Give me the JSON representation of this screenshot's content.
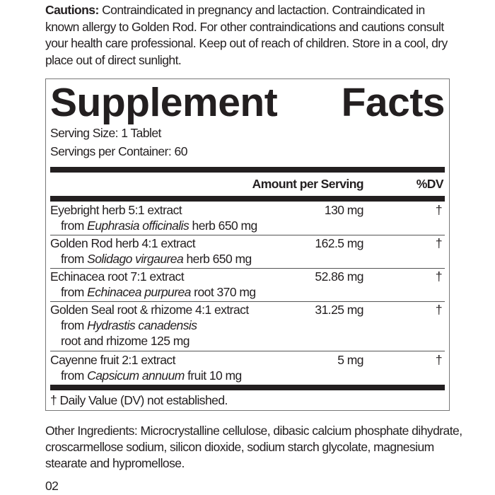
{
  "cautions": {
    "label": "Cautions:",
    "text": "Contraindicated in pregnancy and lactaction. Contraindicated in known allergy to Golden Rod. For other contraindications and cautions consult your health care professional. Keep out of reach of children. Store in a cool, dry place out of direct sunlight."
  },
  "facts": {
    "title_word1": "Supplement",
    "title_word2": "Facts",
    "serving_size": "Serving Size: 1 Tablet",
    "servings_per_container": "Servings per Container: 60",
    "header_amount": "Amount per Serving",
    "header_dv": "%DV",
    "rows": [
      {
        "name": "Eyebright herb 5:1 extract",
        "from": "from ",
        "latin": "Euphrasia officinalis",
        "rest": " herb 650 mg",
        "extra": "",
        "amount": "130 mg",
        "dv": "†"
      },
      {
        "name": "Golden Rod herb 4:1 extract",
        "from": "from ",
        "latin": "Solidago virgaurea",
        "rest": " herb 650 mg",
        "extra": "",
        "amount": "162.5 mg",
        "dv": "†"
      },
      {
        "name": "Echinacea root 7:1 extract",
        "from": "from ",
        "latin": "Echinacea purpurea",
        "rest": " root 370 mg",
        "extra": "",
        "amount": "52.86 mg",
        "dv": "†"
      },
      {
        "name": "Golden Seal root & rhizome 4:1 extract",
        "from": "from ",
        "latin": "Hydrastis canadensis",
        "rest": "",
        "extra": "root and rhizome 125 mg",
        "amount": "31.25 mg",
        "dv": "†"
      },
      {
        "name": "Cayenne fruit 2:1 extract",
        "from": "from ",
        "latin": "Capsicum annuum",
        "rest": " fruit 10 mg",
        "extra": "",
        "amount": "5 mg",
        "dv": "†"
      }
    ],
    "footnote": "† Daily Value (DV) not established."
  },
  "other_ingredients": "Other Ingredients: Microcrystalline cellulose, dibasic calcium phosphate dihydrate, croscarmellose sodium, silicon dioxide, sodium starch glycolate, magnesium stearate and hypromellose.",
  "page_number": "02"
}
